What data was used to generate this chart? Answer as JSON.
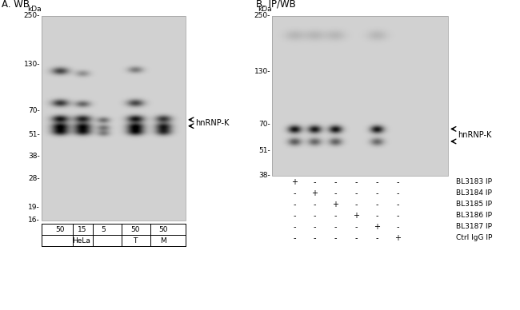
{
  "panel_A_label": "A. WB",
  "panel_B_label": "B. IP/WB",
  "kda_label": "kDa",
  "mw_markers_A": [
    250,
    130,
    70,
    51,
    38,
    28,
    19,
    16
  ],
  "mw_markers_B": [
    250,
    130,
    70,
    51,
    38
  ],
  "label_hnrnpk": "hnRNP-K",
  "lanes_A": [
    "50",
    "15",
    "5",
    "50",
    "50"
  ],
  "group_labels_A": [
    "HeLa",
    "T",
    "M"
  ],
  "ip_labels": [
    "BL3183 IP",
    "BL3184 IP",
    "BL3185 IP",
    "BL3186 IP",
    "BL3187 IP",
    "Ctrl IgG IP"
  ],
  "ip_matrix": [
    [
      "+",
      "-",
      "-",
      "-",
      "-",
      "-"
    ],
    [
      "-",
      "+",
      "-",
      "-",
      "-",
      "-"
    ],
    [
      "-",
      "-",
      "+",
      "-",
      "-",
      "-"
    ],
    [
      "-",
      "-",
      "-",
      "+",
      "-",
      "-"
    ],
    [
      "-",
      "-",
      "-",
      "-",
      "+",
      "-"
    ],
    [
      "-",
      "-",
      "-",
      "-",
      "-",
      "+"
    ]
  ],
  "blot_gray": 0.82,
  "band_dark": 0.18,
  "font_size_mw": 6.5,
  "font_size_lane": 6.5,
  "font_size_annot": 7.0,
  "font_size_panel": 8.5
}
